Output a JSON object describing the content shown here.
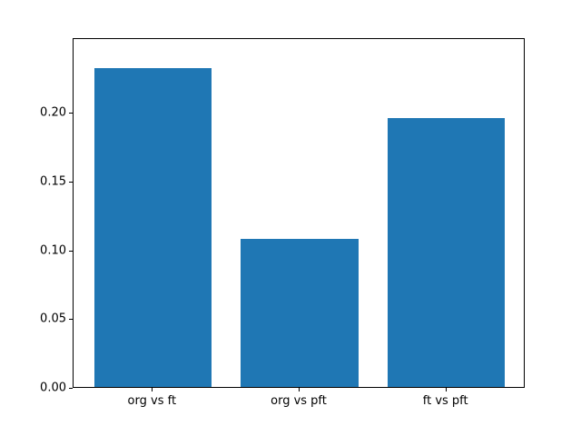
{
  "chart_data": {
    "type": "bar",
    "categories": [
      "org vs ft",
      "org vs pft",
      "ft vs pft"
    ],
    "values": [
      0.232,
      0.108,
      0.196
    ],
    "title": "",
    "xlabel": "",
    "ylabel": "",
    "ylim": [
      0,
      0.2545
    ],
    "yticks": [
      0,
      0.05,
      0.1,
      0.15,
      0.2
    ],
    "ytick_labels": [
      "0.00",
      "0.05",
      "0.10",
      "0.15",
      "0.20"
    ],
    "bar_color": "#1f77b4",
    "background_color": "#ffffff",
    "legend": "off",
    "grid": "off"
  }
}
